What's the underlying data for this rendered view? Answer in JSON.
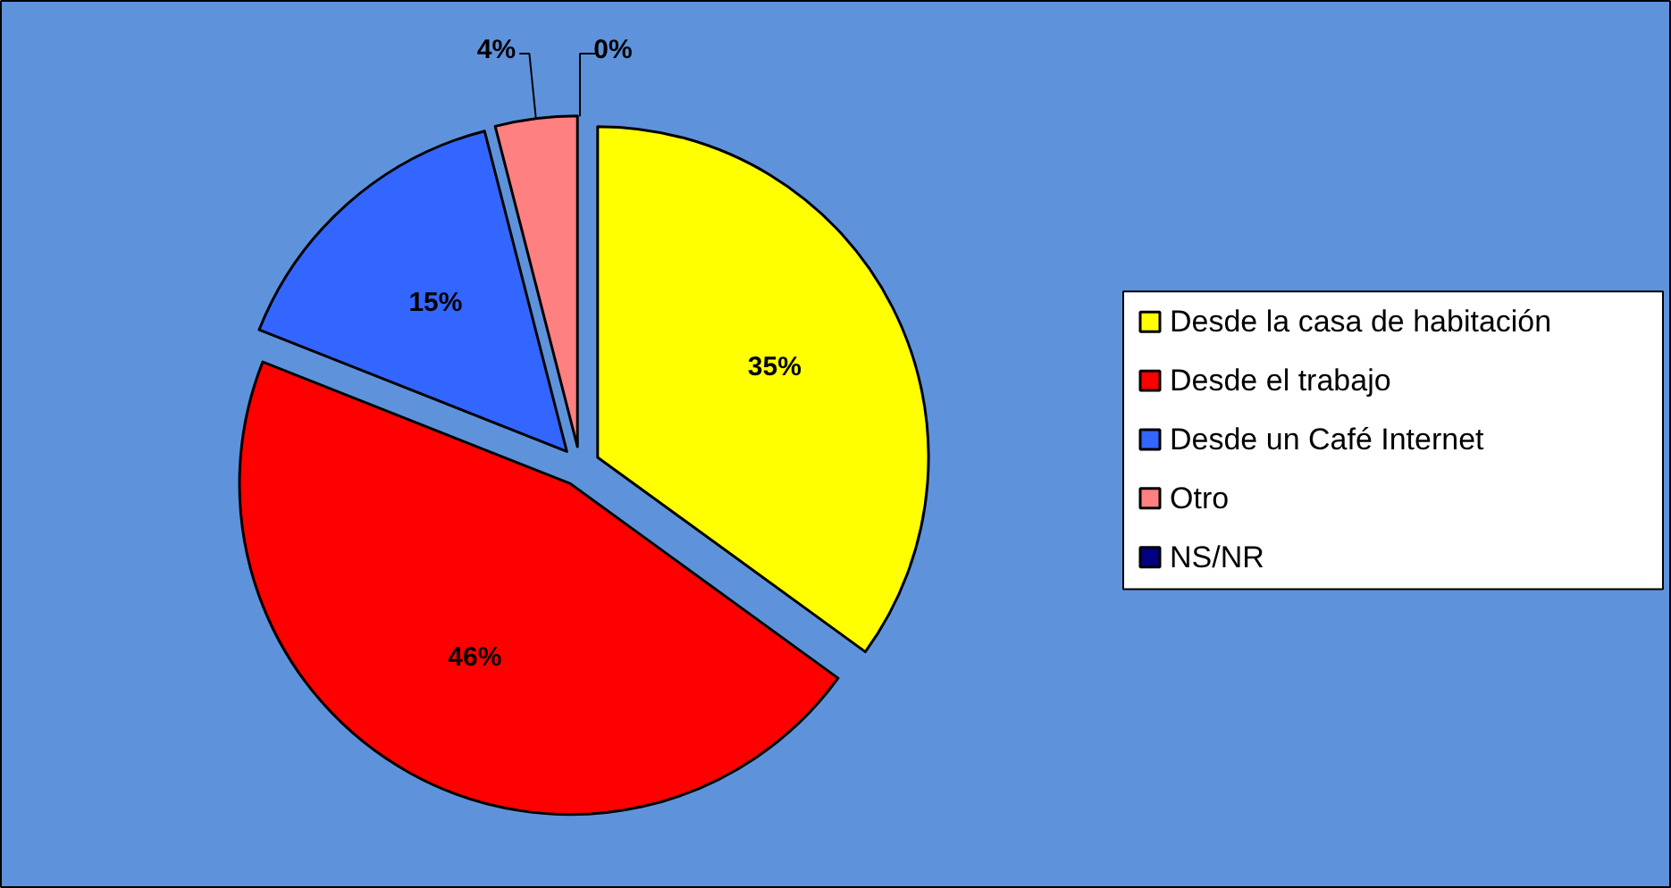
{
  "chart_data": {
    "type": "pie",
    "categories": [
      "Desde la casa de habitación",
      "Desde el trabajo",
      "Desde un Café Internet",
      "Otro",
      "NS/NR"
    ],
    "values": [
      35,
      46,
      15,
      4,
      0
    ],
    "colors": [
      "#ffff00",
      "#ff0000",
      "#3366ff",
      "#ff8080",
      "#000080"
    ],
    "value_labels": [
      "35%",
      "46%",
      "15%",
      "4%",
      "0%"
    ],
    "legend": "right"
  }
}
